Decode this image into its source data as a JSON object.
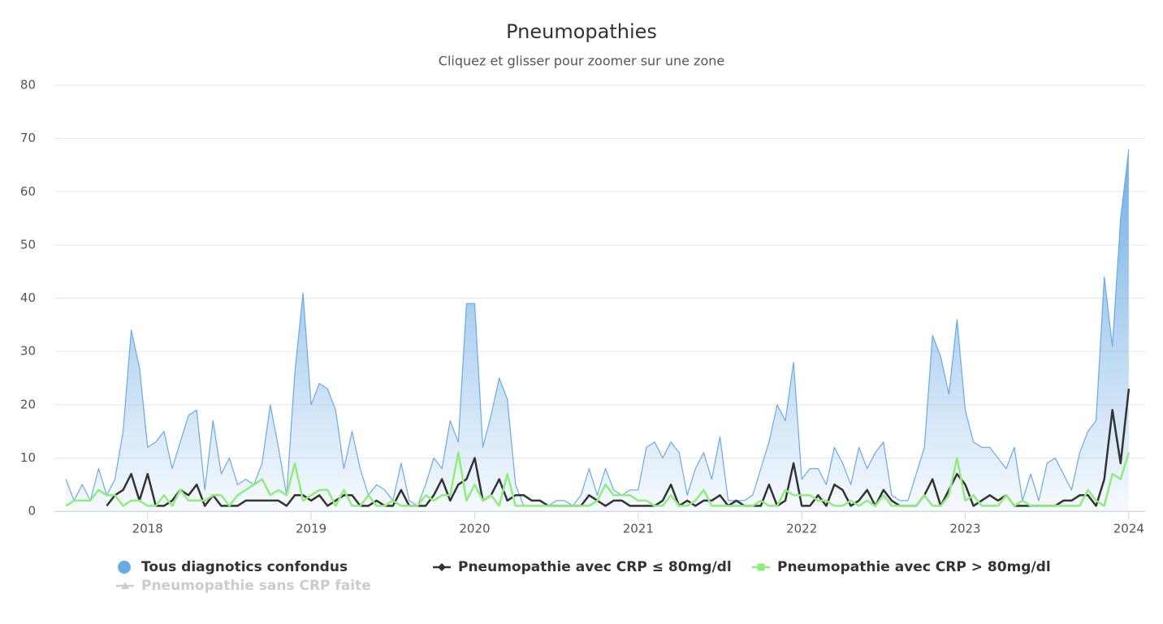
{
  "chart_data": {
    "type": "line",
    "title": "Pneumopathies",
    "subtitle": "Cliquez et glisser pour zoomer sur une zone",
    "xlim": [
      2017.43,
      2024.1
    ],
    "xticks": [
      2018,
      2019,
      2020,
      2021,
      2022,
      2023,
      2024
    ],
    "ylim": [
      0,
      80
    ],
    "yticks": [
      0,
      10,
      20,
      30,
      40,
      50,
      60,
      70,
      80
    ],
    "grid": true,
    "legend": "bottom",
    "x": [
      2017.5,
      2017.55,
      2017.6,
      2017.65,
      2017.7,
      2017.75,
      2017.8,
      2017.85,
      2017.9,
      2017.95,
      2018,
      2018.05,
      2018.1,
      2018.15,
      2018.2,
      2018.25,
      2018.3,
      2018.35,
      2018.4,
      2018.45,
      2018.5,
      2018.55,
      2018.6,
      2018.65,
      2018.7,
      2018.75,
      2018.8,
      2018.85,
      2018.9,
      2018.95,
      2019,
      2019.05,
      2019.1,
      2019.15,
      2019.2,
      2019.25,
      2019.3,
      2019.35,
      2019.4,
      2019.45,
      2019.5,
      2019.55,
      2019.6,
      2019.65,
      2019.7,
      2019.75,
      2019.8,
      2019.85,
      2019.9,
      2019.95,
      2020,
      2020.05,
      2020.1,
      2020.15,
      2020.2,
      2020.25,
      2020.3,
      2020.35,
      2020.4,
      2020.45,
      2020.5,
      2020.55,
      2020.6,
      2020.65,
      2020.7,
      2020.75,
      2020.8,
      2020.85,
      2020.9,
      2020.95,
      2021,
      2021.05,
      2021.1,
      2021.15,
      2021.2,
      2021.25,
      2021.3,
      2021.35,
      2021.4,
      2021.45,
      2021.5,
      2021.55,
      2021.6,
      2021.65,
      2021.7,
      2021.75,
      2021.8,
      2021.85,
      2021.9,
      2021.95,
      2022,
      2022.05,
      2022.1,
      2022.15,
      2022.2,
      2022.25,
      2022.3,
      2022.35,
      2022.4,
      2022.45,
      2022.5,
      2022.55,
      2022.6,
      2022.65,
      2022.7,
      2022.75,
      2022.8,
      2022.85,
      2022.9,
      2022.95,
      2023,
      2023.05,
      2023.1,
      2023.15,
      2023.2,
      2023.25,
      2023.3,
      2023.35,
      2023.4,
      2023.45,
      2023.5,
      2023.55,
      2023.6,
      2023.65,
      2023.7,
      2023.75,
      2023.8,
      2023.85,
      2023.9,
      2023.95,
      2024
    ],
    "series": [
      {
        "name": "Tous diagnotics confondus",
        "type": "area",
        "color": "#6aaae4",
        "values": [
          6,
          2,
          5,
          2,
          8,
          3,
          6,
          15,
          34,
          27,
          12,
          13,
          15,
          8,
          13,
          18,
          19,
          4,
          17,
          7,
          10,
          5,
          6,
          5,
          9,
          20,
          12,
          3,
          26,
          41,
          20,
          24,
          23,
          19,
          8,
          15,
          8,
          3,
          5,
          4,
          2,
          9,
          2,
          1,
          5,
          10,
          8,
          17,
          13,
          39,
          39,
          12,
          18,
          25,
          21,
          5,
          1,
          1,
          1,
          1,
          2,
          2,
          1,
          3,
          8,
          3,
          8,
          4,
          3,
          4,
          4,
          12,
          13,
          10,
          13,
          11,
          3,
          8,
          11,
          6,
          14,
          2,
          2,
          2,
          3,
          8,
          13,
          20,
          17,
          28,
          6,
          8,
          8,
          5,
          12,
          9,
          5,
          12,
          8,
          11,
          13,
          3,
          2,
          2,
          7,
          12,
          33,
          29,
          22,
          36,
          19,
          13,
          12,
          12,
          10,
          8,
          12,
          2,
          7,
          2,
          9,
          10,
          7,
          4,
          11,
          15,
          17,
          44,
          31,
          55,
          68
        ]
      },
      {
        "name": "Pneumopathie avec CRP ≤ 80mg/dl",
        "type": "line",
        "marker": "diamond",
        "color": "#333333",
        "values": [
          null,
          null,
          null,
          null,
          null,
          1,
          3,
          4,
          7,
          2,
          7,
          1,
          1,
          2,
          4,
          3,
          5,
          1,
          3,
          1,
          1,
          1,
          2,
          2,
          2,
          2,
          2,
          1,
          3,
          3,
          2,
          3,
          1,
          2,
          3,
          3,
          1,
          1,
          2,
          1,
          1,
          4,
          1,
          1,
          1,
          3,
          6,
          2,
          5,
          6,
          10,
          2,
          3,
          6,
          2,
          3,
          3,
          2,
          2,
          1,
          1,
          1,
          1,
          1,
          3,
          2,
          1,
          2,
          2,
          1,
          1,
          1,
          1,
          2,
          5,
          1,
          2,
          1,
          2,
          2,
          3,
          1,
          2,
          1,
          1,
          1,
          5,
          1,
          2,
          9,
          1,
          1,
          3,
          1,
          5,
          4,
          1,
          2,
          4,
          1,
          4,
          2,
          1,
          1,
          1,
          3,
          6,
          1,
          4,
          7,
          5,
          1,
          2,
          3,
          2,
          3,
          1,
          1,
          1,
          1,
          1,
          1,
          2,
          2,
          3,
          3,
          1,
          6,
          19,
          9,
          23
        ]
      },
      {
        "name": "Pneumopathie avec CRP > 80mg/dl",
        "type": "line",
        "marker": "square",
        "color": "#90ed7d",
        "values": [
          1,
          2,
          2,
          2,
          4,
          3,
          3,
          1,
          2,
          2,
          1,
          1,
          3,
          1,
          4,
          2,
          2,
          2,
          3,
          3,
          1,
          3,
          4,
          5,
          6,
          3,
          4,
          3,
          9,
          2,
          3,
          4,
          4,
          1,
          4,
          1,
          1,
          3,
          1,
          1,
          2,
          1,
          1,
          1,
          3,
          2,
          3,
          3,
          11,
          2,
          5,
          2,
          3,
          1,
          7,
          1,
          1,
          1,
          1,
          1,
          1,
          1,
          1,
          1,
          1,
          2,
          5,
          3,
          3,
          3,
          2,
          2,
          1,
          1,
          3,
          1,
          1,
          2,
          4,
          1,
          1,
          1,
          1,
          1,
          1,
          2,
          1,
          1,
          4,
          3,
          3,
          3,
          2,
          2,
          1,
          1,
          2,
          1,
          2,
          1,
          3,
          1,
          1,
          1,
          1,
          3,
          1,
          1,
          3,
          10,
          2,
          3,
          1,
          1,
          1,
          3,
          1,
          2,
          1,
          1,
          1,
          1,
          1,
          1,
          1,
          4,
          2,
          1,
          7,
          6,
          11
        ]
      },
      {
        "name": "Pneumopathie sans CRP faite",
        "type": "line",
        "marker": "triangle",
        "color": "#cccccc",
        "visible": false
      }
    ]
  }
}
